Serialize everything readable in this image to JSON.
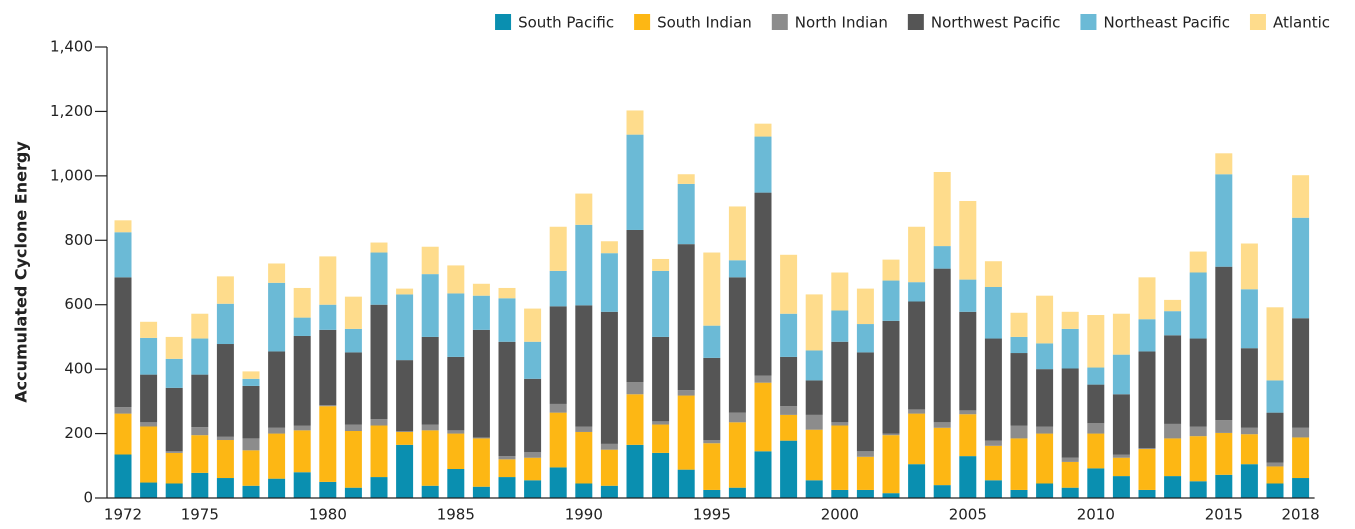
{
  "chart_data": {
    "type": "bar",
    "stacked": true,
    "y_label": "Accumulated Cyclone Energy",
    "categories": [
      "1972",
      null,
      null,
      "1975",
      null,
      null,
      null,
      null,
      "1980",
      null,
      null,
      null,
      null,
      "1985",
      null,
      null,
      null,
      null,
      "1990",
      null,
      null,
      null,
      null,
      "1995",
      null,
      null,
      null,
      null,
      "2000",
      null,
      null,
      null,
      null,
      "2005",
      null,
      null,
      null,
      null,
      "2010",
      null,
      null,
      null,
      null,
      "2015",
      null,
      null,
      "2018"
    ],
    "series": [
      {
        "name": "South Pacific",
        "color": "#0a8fb0",
        "values": [
          135,
          48,
          45,
          78,
          62,
          38,
          60,
          80,
          50,
          32,
          65,
          165,
          38,
          90,
          35,
          65,
          55,
          95,
          45,
          38,
          165,
          140,
          88,
          25,
          32,
          145,
          178,
          55,
          25,
          25,
          15,
          105,
          40,
          130,
          55,
          25,
          45,
          32,
          92,
          68,
          25,
          68,
          52,
          72,
          105,
          45,
          62
        ]
      },
      {
        "name": "South Indian",
        "color": "#fdb714",
        "values": [
          127,
          174,
          95,
          117,
          118,
          110,
          140,
          130,
          235,
          176,
          160,
          40,
          172,
          110,
          150,
          55,
          70,
          170,
          160,
          112,
          157,
          88,
          230,
          145,
          203,
          213,
          80,
          157,
          200,
          103,
          180,
          157,
          178,
          130,
          107,
          160,
          155,
          80,
          108,
          57,
          127,
          117,
          140,
          130,
          93,
          53,
          126
        ]
      },
      {
        "name": "North Indian",
        "color": "#8c8c8c",
        "values": [
          20,
          13,
          5,
          25,
          10,
          37,
          18,
          15,
          3,
          20,
          20,
          2,
          18,
          10,
          3,
          10,
          17,
          27,
          17,
          18,
          38,
          10,
          17,
          10,
          30,
          22,
          27,
          46,
          10,
          17,
          5,
          13,
          17,
          12,
          16,
          40,
          22,
          13,
          32,
          10,
          3,
          45,
          30,
          40,
          20,
          12,
          30
        ]
      },
      {
        "name": "Northwest Pacific",
        "color": "#555555",
        "values": [
          403,
          148,
          197,
          163,
          288,
          163,
          237,
          278,
          234,
          224,
          355,
          221,
          272,
          228,
          334,
          355,
          228,
          303,
          376,
          410,
          472,
          262,
          453,
          255,
          420,
          568,
          153,
          107,
          250,
          307,
          350,
          335,
          477,
          306,
          317,
          225,
          178,
          277,
          120,
          187,
          300,
          275,
          273,
          476,
          247,
          155,
          340
        ]
      },
      {
        "name": "Northeast Pacific",
        "color": "#6bbad6",
        "values": [
          140,
          114,
          90,
          112,
          125,
          22,
          213,
          57,
          78,
          73,
          162,
          204,
          195,
          197,
          106,
          135,
          115,
          110,
          250,
          182,
          296,
          205,
          187,
          100,
          53,
          174,
          134,
          93,
          97,
          88,
          125,
          60,
          70,
          100,
          160,
          50,
          80,
          123,
          53,
          123,
          100,
          75,
          205,
          287,
          183,
          100,
          312
        ]
      },
      {
        "name": "Atlantic",
        "color": "#fedc8c",
        "values": [
          37,
          50,
          68,
          77,
          85,
          23,
          60,
          92,
          150,
          100,
          31,
          18,
          85,
          87,
          37,
          32,
          103,
          137,
          97,
          37,
          75,
          37,
          30,
          227,
          167,
          40,
          183,
          174,
          118,
          110,
          65,
          172,
          230,
          244,
          80,
          75,
          148,
          53,
          163,
          127,
          130,
          35,
          65,
          65,
          142,
          227,
          132
        ]
      }
    ],
    "ylim": [
      0,
      1400
    ],
    "yticks": [
      0,
      200,
      400,
      600,
      800,
      {
        "value": 1000,
        "label": "1,000"
      },
      {
        "value": 1200,
        "label": "1,200"
      },
      {
        "value": 1400,
        "label": "1,400"
      }
    ],
    "legend": "top-right"
  }
}
